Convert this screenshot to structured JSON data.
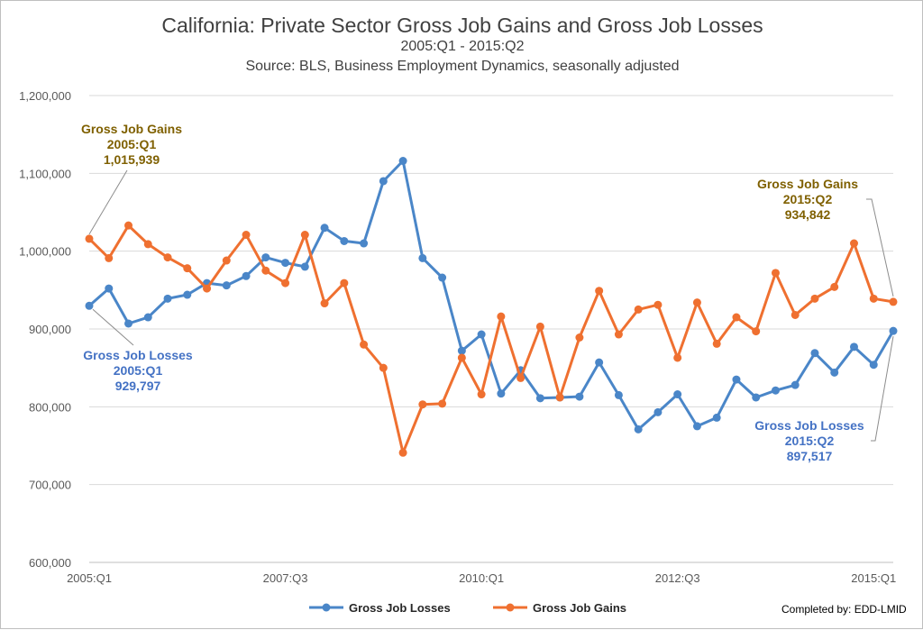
{
  "chart_data": {
    "type": "line",
    "title": "California: Private Sector Gross Job Gains and Gross Job Losses",
    "subtitle": "2005:Q1 - 2015:Q2",
    "source": "Source: BLS, Business Employment Dynamics, seasonally adjusted",
    "credit": "Completed by: EDD-LMID",
    "x_tick_labels": [
      "2005:Q1",
      "2007:Q3",
      "2010:Q1",
      "2012:Q3",
      "2015:Q1"
    ],
    "y_tick_labels": [
      "600,000",
      "700,000",
      "800,000",
      "900,000",
      "1,000,000",
      "1,100,000",
      "1,200,000"
    ],
    "ylim": [
      600000,
      1200000
    ],
    "grid": true,
    "legend_position": "bottom",
    "series": [
      {
        "name": "Gross Job Losses",
        "color": "#4a86c8",
        "values": [
          929797,
          952000,
          907000,
          915000,
          939000,
          944000,
          959000,
          956000,
          968000,
          992000,
          985000,
          980000,
          1030000,
          1013000,
          1010000,
          1090000,
          1116000,
          991000,
          966000,
          872000,
          893000,
          817000,
          847000,
          811000,
          812000,
          813000,
          857000,
          815000,
          771000,
          793000,
          816000,
          775000,
          786000,
          835000,
          812000,
          821000,
          828000,
          869000,
          844000,
          877000,
          854000,
          897517
        ]
      },
      {
        "name": "Gross Job Gains",
        "color": "#ef7030",
        "values": [
          1015939,
          991000,
          1033000,
          1009000,
          992000,
          978000,
          952000,
          988000,
          1021000,
          975000,
          959000,
          1021000,
          933000,
          959000,
          880000,
          850000,
          741000,
          803000,
          804000,
          863000,
          816000,
          916000,
          837000,
          903000,
          812000,
          889000,
          949000,
          893000,
          925000,
          931000,
          863000,
          934000,
          881000,
          915000,
          897000,
          972000,
          918000,
          939000,
          954000,
          1010000,
          939000,
          934842
        ]
      }
    ],
    "annotations": [
      {
        "series": 1,
        "index": 0,
        "lines": [
          "Gross Job Gains",
          "2005:Q1",
          "1,015,939"
        ],
        "color": "#7f6000"
      },
      {
        "series": 0,
        "index": 0,
        "lines": [
          "Gross Job Losses",
          "2005:Q1",
          "929,797"
        ],
        "color": "#4472c4"
      },
      {
        "series": 1,
        "index": 41,
        "lines": [
          "Gross Job Gains",
          "2015:Q2",
          "934,842"
        ],
        "color": "#7f6000"
      },
      {
        "series": 0,
        "index": 41,
        "lines": [
          "Gross Job Losses",
          "2015:Q2",
          "897,517"
        ],
        "color": "#4472c4"
      }
    ]
  }
}
